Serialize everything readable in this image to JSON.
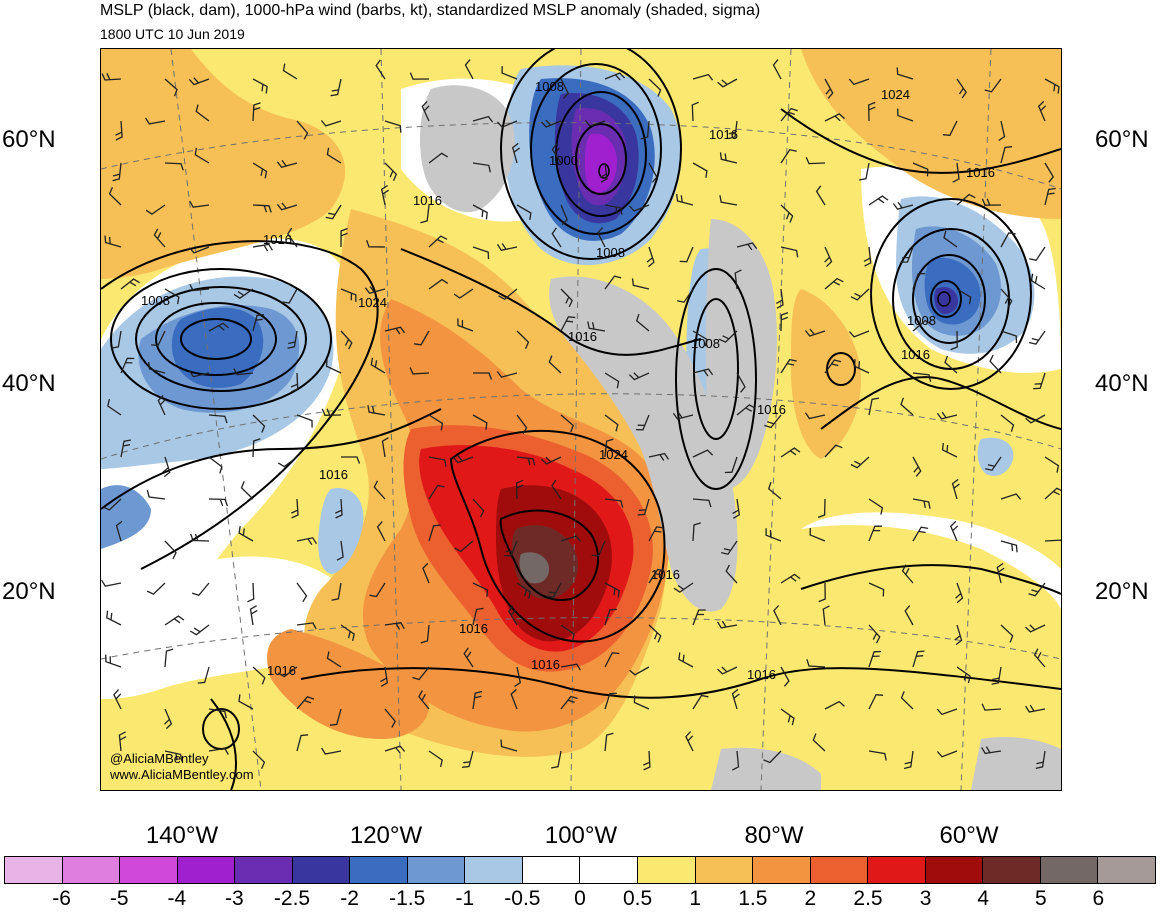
{
  "title": "MSLP (black, dam), 1000-hPa wind (barbs, kt), standardized MSLP anomaly (shaded, sigma)",
  "valid_time": "1800 UTC 10 Jun 2019",
  "credits": [
    "@AliciaMBentley",
    "www.AliciaMBentley.com"
  ],
  "lat_labels_left": [
    "60°N",
    "40°N",
    "20°N"
  ],
  "lat_labels_right": [
    "60°N",
    "40°N",
    "20°N"
  ],
  "lon_labels": [
    "140°W",
    "120°W",
    "100°W",
    "80°W",
    "60°W"
  ],
  "isobar_labels": [
    "1008",
    "1000",
    "1016",
    "1008",
    "1016",
    "1024",
    "1016",
    "1008",
    "1016",
    "1016",
    "1008",
    "1016",
    "1024",
    "1024",
    "1016",
    "1016",
    "1016",
    "1016",
    "1016",
    "1008",
    "1016",
    "1016"
  ],
  "colorbar": {
    "labels": [
      "-6",
      "-5",
      "-4",
      "-3",
      "-2.5",
      "-2",
      "-1.5",
      "-1",
      "-0.5",
      "0",
      "0.5",
      "1",
      "1.5",
      "2",
      "2.5",
      "3",
      "4",
      "5",
      "6"
    ],
    "colors": [
      "#e8b4e8",
      "#e07ee0",
      "#d048d8",
      "#a020d0",
      "#6a2cb0",
      "#3a36a0",
      "#3a6cc0",
      "#6e98d2",
      "#a8c8e6",
      "#ffffff",
      "#ffffff",
      "#fbe870",
      "#f6c056",
      "#f29440",
      "#ec6030",
      "#e01818",
      "#a00c0c",
      "#6e2a26",
      "#736866",
      "#a69a98"
    ]
  }
}
